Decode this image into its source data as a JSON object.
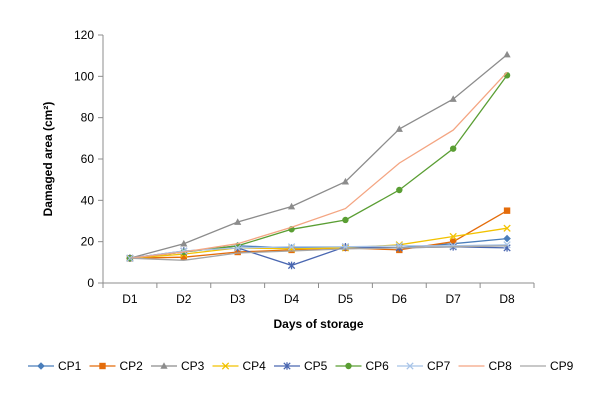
{
  "chart_data": {
    "type": "line",
    "title": "",
    "xlabel": "Days of storage",
    "ylabel": "Damaged area (cm²)",
    "categories": [
      "D1",
      "D2",
      "D3",
      "D4",
      "D5",
      "D6",
      "D7",
      "D8"
    ],
    "ylim": [
      0,
      120
    ],
    "yticks": [
      0,
      20,
      40,
      60,
      80,
      100,
      120
    ],
    "grid": false,
    "legend_position": "bottom",
    "series": [
      {
        "name": "CP1",
        "color": "#4a7ebb",
        "marker": "diamond",
        "values": [
          12,
          15,
          18,
          17,
          17,
          17,
          19,
          21.5
        ]
      },
      {
        "name": "CP2",
        "color": "#e46c0a",
        "marker": "square",
        "values": [
          12,
          12.5,
          15,
          16,
          17,
          16,
          20,
          35
        ]
      },
      {
        "name": "CP3",
        "color": "#8c8c8c",
        "marker": "triangle",
        "values": [
          12,
          19,
          29.5,
          37,
          49,
          74.5,
          89,
          110.5
        ]
      },
      {
        "name": "CP4",
        "color": "#f2c200",
        "marker": "x",
        "values": [
          12,
          14,
          17,
          16.5,
          17,
          18.5,
          22.5,
          26.5
        ]
      },
      {
        "name": "CP5",
        "color": "#4a67b1",
        "marker": "star",
        "values": [
          12,
          15.5,
          17,
          8.5,
          17.5,
          17,
          17.5,
          17
        ]
      },
      {
        "name": "CP6",
        "color": "#5a9e33",
        "marker": "circle",
        "values": [
          12,
          15,
          18,
          26,
          30.5,
          45,
          65,
          100.5
        ]
      },
      {
        "name": "CP7",
        "color": "#a8c4e8",
        "marker": "x",
        "values": [
          12,
          15.5,
          17,
          17.5,
          17.5,
          18,
          18,
          18.5
        ]
      },
      {
        "name": "CP8",
        "color": "#f4a582",
        "marker": "none",
        "values": [
          12,
          15,
          19,
          27,
          36,
          58,
          74,
          102
        ]
      },
      {
        "name": "CP9",
        "color": "#a6a6a6",
        "marker": "none",
        "values": [
          12,
          11,
          14.5,
          15.5,
          16.5,
          17,
          17.5,
          18
        ]
      }
    ]
  }
}
